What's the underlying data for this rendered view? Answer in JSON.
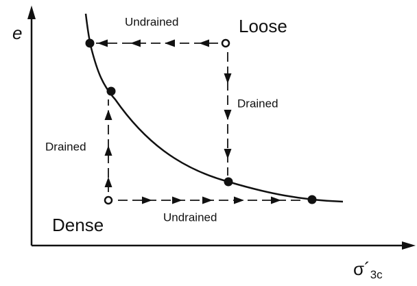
{
  "axes": {
    "y_label": "e",
    "x_label": {
      "symbol": "σ´",
      "subscript": "3c"
    }
  },
  "labels": {
    "loose": "Loose",
    "dense": "Dense",
    "undrained_top": "Undrained",
    "drained_right": "Drained",
    "drained_left": "Drained",
    "undrained_bottom": "Undrained"
  }
}
